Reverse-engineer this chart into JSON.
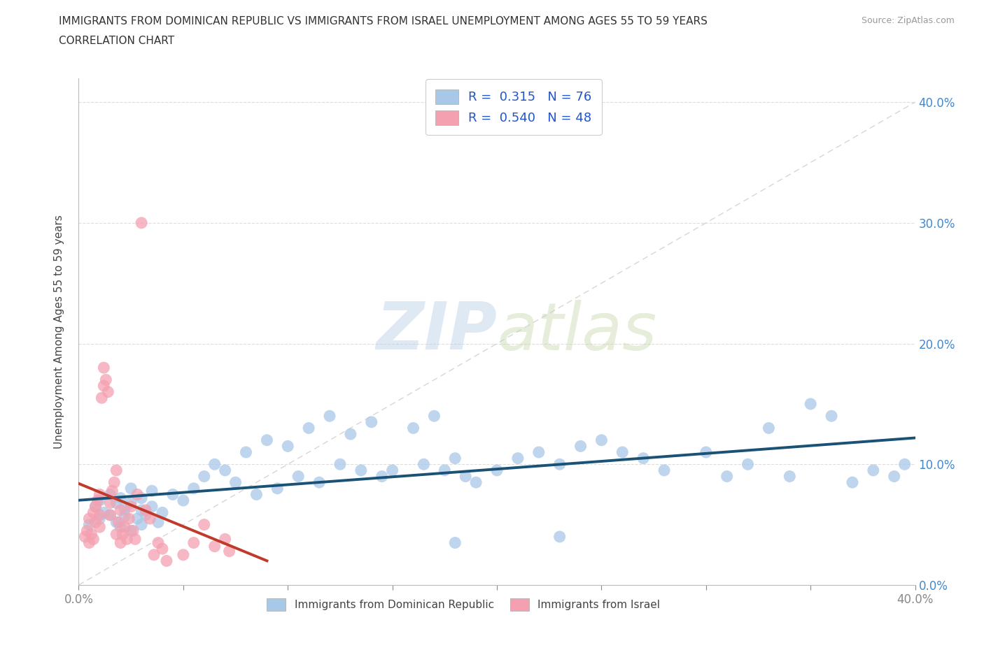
{
  "title_line1": "IMMIGRANTS FROM DOMINICAN REPUBLIC VS IMMIGRANTS FROM ISRAEL UNEMPLOYMENT AMONG AGES 55 TO 59 YEARS",
  "title_line2": "CORRELATION CHART",
  "source_text": "Source: ZipAtlas.com",
  "ylabel": "Unemployment Among Ages 55 to 59 years",
  "xlim": [
    0.0,
    0.4
  ],
  "ylim": [
    0.0,
    0.42
  ],
  "blue_R": "0.315",
  "blue_N": "76",
  "pink_R": "0.540",
  "pink_N": "48",
  "blue_color": "#a8c8e8",
  "pink_color": "#f4a0b0",
  "blue_line_color": "#1a5276",
  "pink_line_color": "#c0392b",
  "diagonal_color": "#cccccc",
  "blue_scatter_x": [
    0.005,
    0.008,
    0.01,
    0.01,
    0.012,
    0.015,
    0.015,
    0.018,
    0.018,
    0.02,
    0.02,
    0.022,
    0.022,
    0.025,
    0.025,
    0.025,
    0.028,
    0.03,
    0.03,
    0.03,
    0.032,
    0.035,
    0.035,
    0.038,
    0.04,
    0.045,
    0.05,
    0.055,
    0.06,
    0.065,
    0.07,
    0.075,
    0.08,
    0.085,
    0.09,
    0.095,
    0.1,
    0.105,
    0.11,
    0.115,
    0.12,
    0.125,
    0.13,
    0.135,
    0.14,
    0.145,
    0.15,
    0.16,
    0.165,
    0.17,
    0.175,
    0.18,
    0.185,
    0.19,
    0.2,
    0.21,
    0.22,
    0.23,
    0.24,
    0.25,
    0.26,
    0.27,
    0.28,
    0.3,
    0.31,
    0.32,
    0.33,
    0.34,
    0.35,
    0.36,
    0.37,
    0.38,
    0.39,
    0.395,
    0.23,
    0.18
  ],
  "blue_scatter_y": [
    0.05,
    0.065,
    0.055,
    0.07,
    0.06,
    0.075,
    0.058,
    0.068,
    0.052,
    0.072,
    0.048,
    0.063,
    0.057,
    0.08,
    0.045,
    0.068,
    0.055,
    0.072,
    0.062,
    0.05,
    0.058,
    0.065,
    0.078,
    0.052,
    0.06,
    0.075,
    0.07,
    0.08,
    0.09,
    0.1,
    0.095,
    0.085,
    0.11,
    0.075,
    0.12,
    0.08,
    0.115,
    0.09,
    0.13,
    0.085,
    0.14,
    0.1,
    0.125,
    0.095,
    0.135,
    0.09,
    0.095,
    0.13,
    0.1,
    0.14,
    0.095,
    0.105,
    0.09,
    0.085,
    0.095,
    0.105,
    0.11,
    0.1,
    0.115,
    0.12,
    0.11,
    0.105,
    0.095,
    0.11,
    0.09,
    0.1,
    0.13,
    0.09,
    0.15,
    0.14,
    0.085,
    0.095,
    0.09,
    0.1,
    0.04,
    0.035
  ],
  "pink_scatter_x": [
    0.003,
    0.004,
    0.005,
    0.005,
    0.006,
    0.007,
    0.007,
    0.008,
    0.008,
    0.009,
    0.01,
    0.01,
    0.01,
    0.011,
    0.012,
    0.012,
    0.013,
    0.014,
    0.015,
    0.015,
    0.016,
    0.017,
    0.018,
    0.018,
    0.019,
    0.02,
    0.02,
    0.021,
    0.022,
    0.023,
    0.024,
    0.025,
    0.026,
    0.027,
    0.028,
    0.03,
    0.032,
    0.034,
    0.036,
    0.038,
    0.04,
    0.042,
    0.05,
    0.055,
    0.06,
    0.065,
    0.07,
    0.072
  ],
  "pink_scatter_y": [
    0.04,
    0.045,
    0.035,
    0.055,
    0.042,
    0.06,
    0.038,
    0.065,
    0.052,
    0.07,
    0.048,
    0.075,
    0.058,
    0.155,
    0.165,
    0.18,
    0.17,
    0.16,
    0.058,
    0.068,
    0.078,
    0.085,
    0.095,
    0.042,
    0.052,
    0.062,
    0.035,
    0.042,
    0.048,
    0.038,
    0.055,
    0.065,
    0.045,
    0.038,
    0.075,
    0.3,
    0.062,
    0.055,
    0.025,
    0.035,
    0.03,
    0.02,
    0.025,
    0.035,
    0.05,
    0.032,
    0.038,
    0.028
  ]
}
